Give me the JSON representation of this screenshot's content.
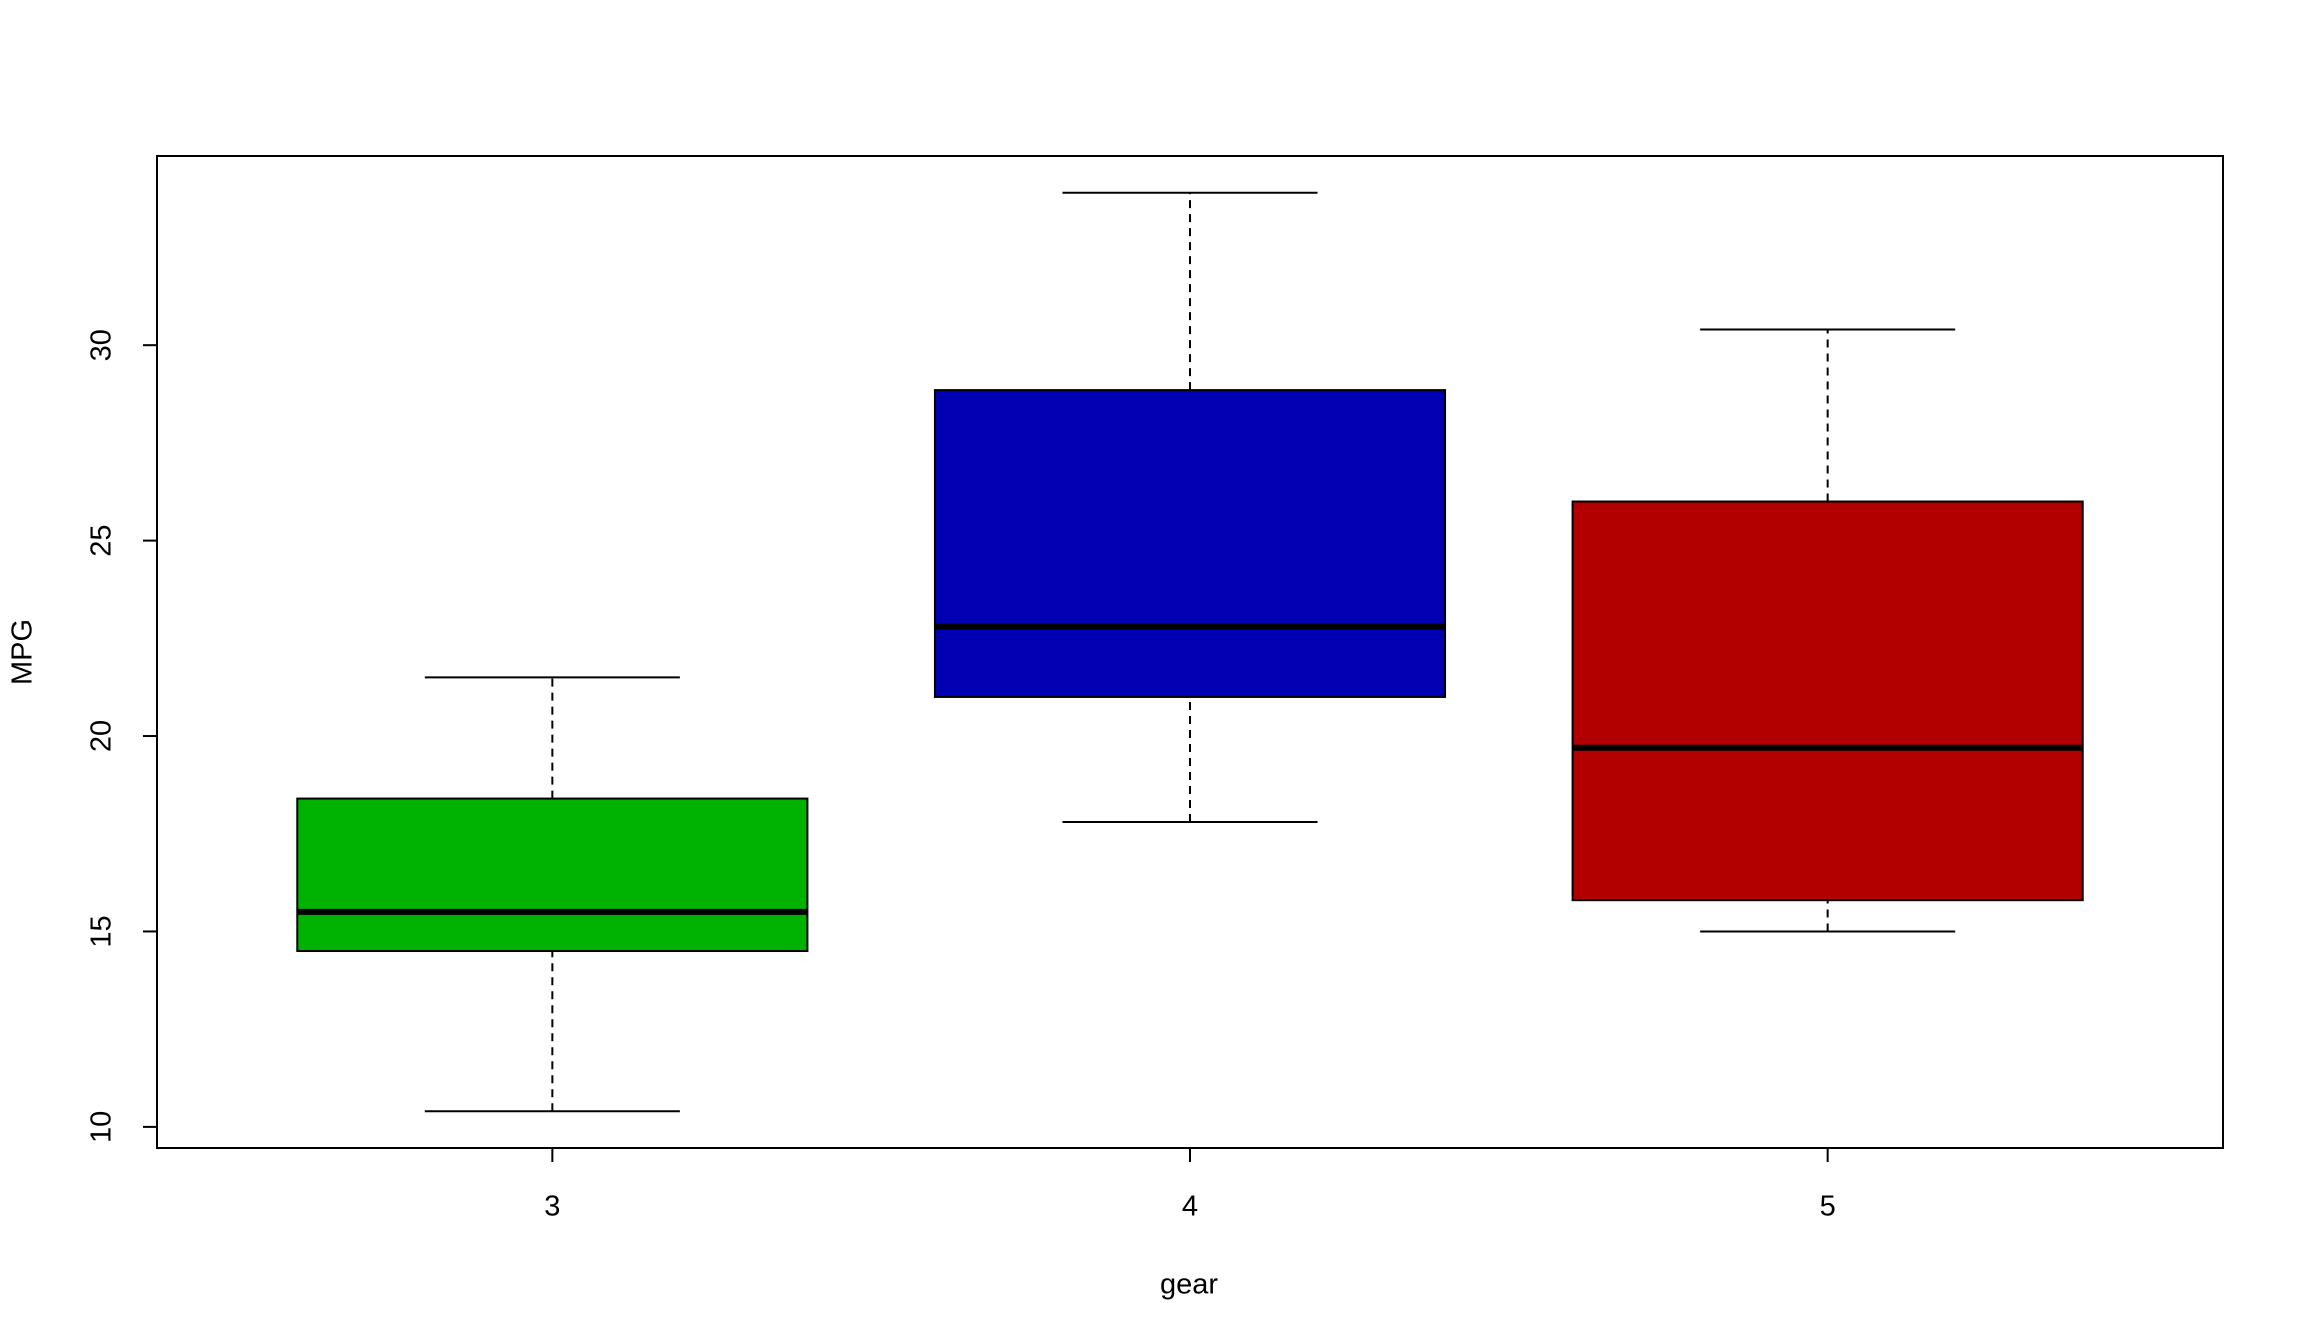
{
  "chart_data": {
    "type": "box",
    "x_label": "gear",
    "y_label": "MPG",
    "categories": [
      "3",
      "4",
      "5"
    ],
    "colors": [
      "#00b200",
      "#0000b2",
      "#b20000"
    ],
    "min": [
      10.4,
      17.8,
      15.0
    ],
    "q1": [
      14.5,
      21.0,
      15.8
    ],
    "median": [
      15.5,
      22.8,
      19.7
    ],
    "q3": [
      18.4,
      28.85,
      26.0
    ],
    "max": [
      21.5,
      33.9,
      30.4
    ],
    "ylim": [
      9.46,
      34.84
    ],
    "yticks": [
      10,
      15,
      20,
      25,
      30
    ]
  }
}
